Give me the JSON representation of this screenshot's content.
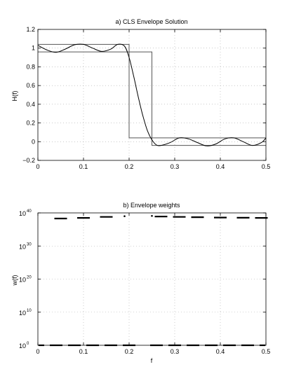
{
  "chart_data": [
    {
      "type": "line",
      "title": "a) CLS Envelope Solution",
      "xlabel": "",
      "ylabel": "H(f)",
      "xlim": [
        0,
        0.5
      ],
      "ylim": [
        -0.2,
        1.2
      ],
      "x_ticks": [
        "0",
        "0.1",
        "0.2",
        "0.3",
        "0.4",
        "0.5"
      ],
      "y_ticks": [
        "−0.2",
        "0",
        "0.2",
        "0.4",
        "0.6",
        "0.8",
        "1",
        "1.2"
      ],
      "grid": true,
      "envelope_upper": {
        "x": [
          0,
          0.2,
          0.2,
          0.5
        ],
        "y": [
          1.04,
          1.04,
          0.04,
          0.04
        ]
      },
      "envelope_lower": {
        "x": [
          0,
          0.25,
          0.25,
          0.5
        ],
        "y": [
          0.96,
          0.96,
          -0.04,
          -0.04
        ]
      },
      "response": {
        "x": [
          0,
          0.02,
          0.04,
          0.06,
          0.08,
          0.1,
          0.12,
          0.14,
          0.16,
          0.175,
          0.19,
          0.2,
          0.21,
          0.22,
          0.23,
          0.24,
          0.25,
          0.26,
          0.27,
          0.29,
          0.31,
          0.33,
          0.35,
          0.37,
          0.39,
          0.41,
          0.43,
          0.45,
          0.47,
          0.49,
          0.5
        ],
        "y": [
          1.03,
          0.98,
          0.955,
          0.99,
          1.035,
          1.04,
          1.0,
          0.965,
          0.99,
          1.04,
          1.02,
          0.9,
          0.7,
          0.48,
          0.28,
          0.12,
          0.02,
          -0.035,
          -0.04,
          -0.01,
          0.04,
          0.03,
          -0.01,
          -0.045,
          -0.025,
          0.03,
          0.04,
          0.0,
          -0.04,
          -0.01,
          0.04
        ]
      }
    },
    {
      "type": "line",
      "title": "b) Envelope weights",
      "xlabel": "f",
      "ylabel": "w(f)",
      "xlim": [
        0,
        0.5
      ],
      "ylim_log10": [
        0,
        40
      ],
      "x_ticks": [
        "0",
        "0.1",
        "0.2",
        "0.3",
        "0.4",
        "0.5"
      ],
      "y_tick_base": "10",
      "y_tick_exponents": [
        "0",
        "10",
        "20",
        "30",
        "40"
      ],
      "grid": true,
      "upper_weights": {
        "log10_w": [
          38.3,
          38.5,
          38.8,
          39.0,
          39.1,
          38.9,
          38.8,
          38.7,
          38.6,
          38.55,
          38.5
        ],
        "x": [
          0.05,
          0.1,
          0.15,
          0.19,
          0.25,
          0.27,
          0.31,
          0.35,
          0.4,
          0.45,
          0.49
        ]
      },
      "lower_weights": {
        "log10_w": 0,
        "x": [
          0.0,
          0.04,
          0.08,
          0.12,
          0.16,
          0.2,
          0.26,
          0.3,
          0.34,
          0.38,
          0.42,
          0.46,
          0.5
        ]
      }
    }
  ]
}
